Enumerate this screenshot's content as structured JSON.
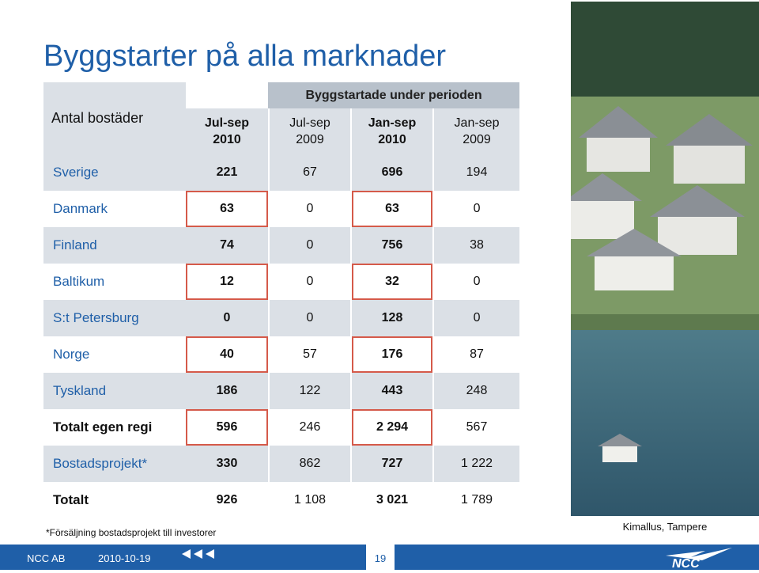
{
  "title": "Byggstarter på alla marknader",
  "table": {
    "corner_label": "Antal bostäder",
    "group_header": "Byggstartade under perioden",
    "columns": [
      {
        "line1": "Jul-sep",
        "line2": "2010",
        "bold": true
      },
      {
        "line1": "Jul-sep",
        "line2": "2009",
        "bold": false
      },
      {
        "line1": "Jan-sep",
        "line2": "2010",
        "bold": true
      },
      {
        "line1": "Jan-sep",
        "line2": "2009",
        "bold": false
      }
    ],
    "rows": [
      {
        "label": "Sverige",
        "values": [
          "221",
          "67",
          "696",
          "194"
        ],
        "bold_label": false
      },
      {
        "label": "Danmark",
        "values": [
          "63",
          "0",
          "63",
          "0"
        ],
        "bold_label": false
      },
      {
        "label": "Finland",
        "values": [
          "74",
          "0",
          "756",
          "38"
        ],
        "bold_label": false
      },
      {
        "label": "Baltikum",
        "values": [
          "12",
          "0",
          "32",
          "0"
        ],
        "bold_label": false
      },
      {
        "label": "S:t Petersburg",
        "values": [
          "0",
          "0",
          "128",
          "0"
        ],
        "bold_label": false
      },
      {
        "label": "Norge",
        "values": [
          "40",
          "57",
          "176",
          "87"
        ],
        "bold_label": false
      },
      {
        "label": "Tyskland",
        "values": [
          "186",
          "122",
          "443",
          "248"
        ],
        "bold_label": false
      },
      {
        "label": "Totalt egen regi",
        "values": [
          "596",
          "246",
          "2 294",
          "567"
        ],
        "bold_label": true
      },
      {
        "label": "Bostadsprojekt*",
        "values": [
          "330",
          "862",
          "727",
          "1 222"
        ],
        "bold_label": false
      },
      {
        "label": "Totalt",
        "values": [
          "926",
          "1 108",
          "3 021",
          "1 789"
        ],
        "bold_label": true
      }
    ]
  },
  "footnote": "*Försäljning bostadsprojekt till investorer",
  "photo_caption": "Kimallus, Tampere",
  "footer": {
    "company": "NCC AB",
    "date": "2010-10-19",
    "page": "19",
    "logo_text": "NCC"
  },
  "colors": {
    "brand_blue": "#1f5fa8",
    "header_band": "#b8c1cb",
    "row_shade": "#dbe0e6",
    "highlight_border": "#d55a4a"
  }
}
